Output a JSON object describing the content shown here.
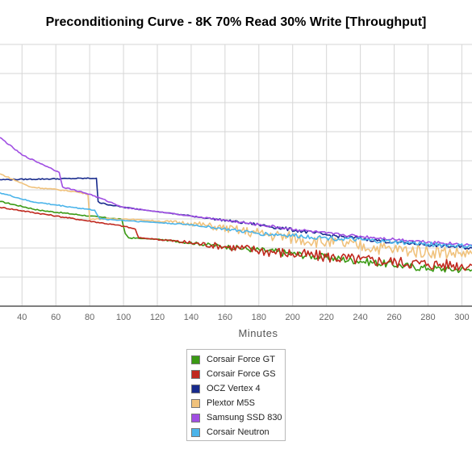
{
  "chart_data": {
    "type": "line",
    "title": "Preconditioning Curve - 8K 70% Read 30% Write [Throughput]",
    "xlabel": "Minutes",
    "ylabel": "",
    "xlim": [
      27,
      306
    ],
    "ylim": [
      0,
      9
    ],
    "x_ticks": [
      40,
      60,
      80,
      100,
      120,
      140,
      160,
      180,
      200,
      220,
      240,
      260,
      280,
      300
    ],
    "grid": true,
    "legend_position": "bottom-center",
    "series": [
      {
        "name": "Corsair Force GT",
        "color": "#3a9a14",
        "noise": 0.25,
        "points": [
          [
            27,
            3.6
          ],
          [
            50,
            3.3
          ],
          [
            80,
            3.1
          ],
          [
            99,
            2.98
          ],
          [
            101,
            2.5
          ],
          [
            103,
            2.35
          ],
          [
            120,
            2.3
          ],
          [
            160,
            2.05
          ],
          [
            200,
            1.8
          ],
          [
            240,
            1.55
          ],
          [
            280,
            1.3
          ],
          [
            306,
            1.25
          ]
        ]
      },
      {
        "name": "Corsair Force GS",
        "color": "#c0281e",
        "noise": 0.4,
        "points": [
          [
            27,
            3.4
          ],
          [
            60,
            3.1
          ],
          [
            100,
            2.75
          ],
          [
            107,
            2.65
          ],
          [
            109,
            2.35
          ],
          [
            120,
            2.3
          ],
          [
            160,
            2.05
          ],
          [
            200,
            1.8
          ],
          [
            240,
            1.6
          ],
          [
            280,
            1.45
          ],
          [
            306,
            1.4
          ]
        ]
      },
      {
        "name": "OCZ Vertex 4",
        "color": "#172a8c",
        "noise": 0.12,
        "points": [
          [
            27,
            4.35
          ],
          [
            84,
            4.4
          ],
          [
            85,
            3.6
          ],
          [
            86,
            3.55
          ],
          [
            100,
            3.4
          ],
          [
            140,
            3.1
          ],
          [
            180,
            2.8
          ],
          [
            220,
            2.45
          ],
          [
            260,
            2.2
          ],
          [
            306,
            2.0
          ]
        ]
      },
      {
        "name": "Plextor M5S",
        "color": "#f0c27c",
        "noise": 0.45,
        "points": [
          [
            27,
            4.55
          ],
          [
            45,
            4.1
          ],
          [
            70,
            3.95
          ],
          [
            79,
            3.85
          ],
          [
            80,
            3.0
          ],
          [
            100,
            3.0
          ],
          [
            140,
            2.85
          ],
          [
            180,
            2.5
          ],
          [
            220,
            2.2
          ],
          [
            260,
            1.95
          ],
          [
            306,
            1.8
          ]
        ]
      },
      {
        "name": "Samsung SSD 830",
        "color": "#a04ee2",
        "noise": 0.1,
        "points": [
          [
            27,
            5.8
          ],
          [
            40,
            5.2
          ],
          [
            55,
            4.8
          ],
          [
            62,
            4.6
          ],
          [
            64,
            4.1
          ],
          [
            80,
            3.85
          ],
          [
            100,
            3.4
          ],
          [
            140,
            3.1
          ],
          [
            180,
            2.8
          ],
          [
            220,
            2.5
          ],
          [
            260,
            2.3
          ],
          [
            306,
            2.1
          ]
        ]
      },
      {
        "name": "Corsair Neutron",
        "color": "#4bb4ea",
        "noise": 0.15,
        "points": [
          [
            27,
            3.9
          ],
          [
            45,
            3.6
          ],
          [
            70,
            3.4
          ],
          [
            83,
            3.3
          ],
          [
            86,
            3.0
          ],
          [
            100,
            2.95
          ],
          [
            140,
            2.8
          ],
          [
            180,
            2.5
          ],
          [
            220,
            2.35
          ],
          [
            260,
            2.2
          ],
          [
            306,
            2.05
          ]
        ]
      }
    ]
  }
}
